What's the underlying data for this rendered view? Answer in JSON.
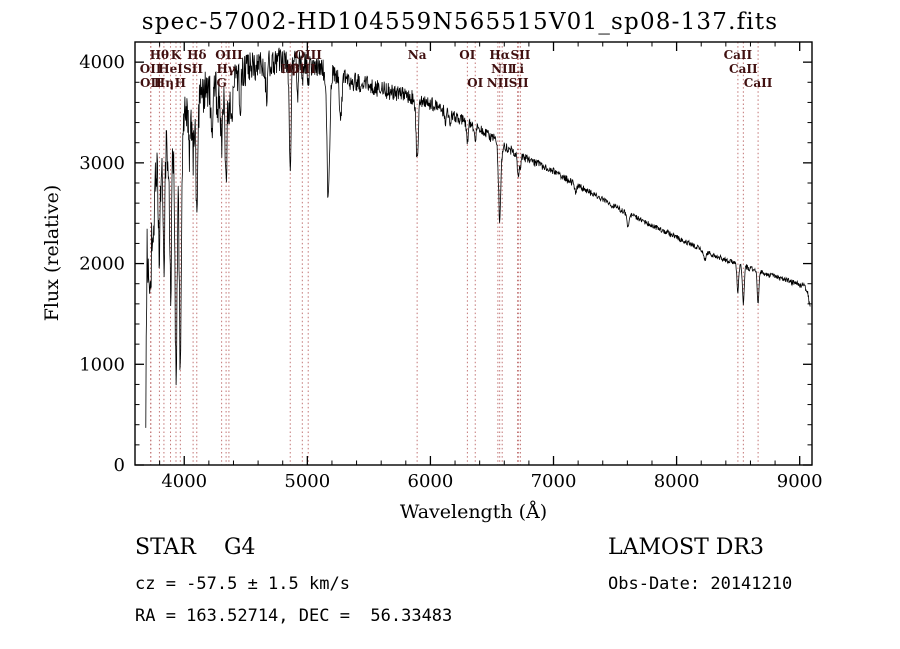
{
  "chart_data": {
    "type": "line",
    "title": "spec-57002-HD104559N565515V01_sp08-137.fits",
    "xlabel": "Wavelength (Å)",
    "ylabel": "Flux (relative)",
    "xlim": [
      3600,
      9100
    ],
    "ylim": [
      0,
      4200
    ],
    "xticks": [
      4000,
      5000,
      6000,
      7000,
      8000,
      9000
    ],
    "yticks": [
      0,
      1000,
      2000,
      3000,
      4000
    ],
    "x_minor_step": 200,
    "y_minor_step": 200,
    "grid": false,
    "legend": "none",
    "series_color": "#000000",
    "marked_line_color": "#bb6666",
    "marked_label_color": "#401010",
    "marked_lines": [
      {
        "label": "Hθ",
        "wavelength": 3798,
        "row": 1
      },
      {
        "label": "K",
        "wavelength": 3933,
        "row": 1
      },
      {
        "label": "Hδ",
        "wavelength": 4102,
        "row": 1
      },
      {
        "label": "OIII",
        "wavelength": 4363,
        "row": 1
      },
      {
        "label": "OIII",
        "wavelength": 5007,
        "row": 1
      },
      {
        "label": "Na",
        "wavelength": 5892,
        "row": 1
      },
      {
        "label": "OI",
        "wavelength": 6300,
        "row": 1
      },
      {
        "label": "Hα",
        "wavelength": 6563,
        "row": 1
      },
      {
        "label": "SII",
        "wavelength": 6731,
        "row": 1
      },
      {
        "label": "CaII",
        "wavelength": 8498,
        "row": 1
      },
      {
        "label": "OII",
        "wavelength": 3727,
        "row": 2
      },
      {
        "label": "HeI",
        "wavelength": 3889,
        "row": 2
      },
      {
        "label": "SII",
        "wavelength": 4072,
        "row": 2
      },
      {
        "label": "Hγ",
        "wavelength": 4340,
        "row": 2
      },
      {
        "label": "Hβ",
        "wavelength": 4861,
        "row": 2
      },
      {
        "label": "OIII",
        "wavelength": 4959,
        "row": 2
      },
      {
        "label": "NII",
        "wavelength": 6583,
        "row": 2
      },
      {
        "label": "Li",
        "wavelength": 6708,
        "row": 2
      },
      {
        "label": "CaII",
        "wavelength": 8542,
        "row": 2
      },
      {
        "label": "OII",
        "wavelength": 3729,
        "row": 3
      },
      {
        "label": "Hη",
        "wavelength": 3835,
        "row": 3
      },
      {
        "label": "H",
        "wavelength": 3968,
        "row": 3
      },
      {
        "label": "G",
        "wavelength": 4304,
        "row": 3
      },
      {
        "label": "OI",
        "wavelength": 6364,
        "row": 3
      },
      {
        "label": "NII",
        "wavelength": 6548,
        "row": 3
      },
      {
        "label": "SII",
        "wavelength": 6717,
        "row": 3
      },
      {
        "label": "CaII",
        "wavelength": 8662,
        "row": 3
      }
    ],
    "spectrum": {
      "seed": 20141210,
      "samples": 1600,
      "range": [
        3688,
        9085
      ],
      "continuum": [
        [
          3688,
          400
        ],
        [
          3692,
          1600
        ],
        [
          3700,
          2500
        ],
        [
          3730,
          2850
        ],
        [
          3770,
          2950
        ],
        [
          3820,
          3050
        ],
        [
          3870,
          3150
        ],
        [
          3920,
          3250
        ],
        [
          3970,
          3350
        ],
        [
          4020,
          3500
        ],
        [
          4080,
          3600
        ],
        [
          4150,
          3700
        ],
        [
          4250,
          3760
        ],
        [
          4350,
          3820
        ],
        [
          4450,
          3900
        ],
        [
          4550,
          3950
        ],
        [
          4650,
          3990
        ],
        [
          4750,
          4010
        ],
        [
          4850,
          4030
        ],
        [
          4950,
          4010
        ],
        [
          5050,
          3960
        ],
        [
          5150,
          3910
        ],
        [
          5250,
          3860
        ],
        [
          5350,
          3810
        ],
        [
          5450,
          3780
        ],
        [
          5550,
          3750
        ],
        [
          5650,
          3710
        ],
        [
          5750,
          3680
        ],
        [
          5850,
          3650
        ],
        [
          5950,
          3610
        ],
        [
          6050,
          3560
        ],
        [
          6150,
          3490
        ],
        [
          6250,
          3430
        ],
        [
          6350,
          3360
        ],
        [
          6450,
          3290
        ],
        [
          6550,
          3210
        ],
        [
          6650,
          3130
        ],
        [
          6750,
          3060
        ],
        [
          6850,
          3000
        ],
        [
          6950,
          2950
        ],
        [
          7050,
          2880
        ],
        [
          7150,
          2810
        ],
        [
          7250,
          2740
        ],
        [
          7350,
          2670
        ],
        [
          7450,
          2600
        ],
        [
          7550,
          2530
        ],
        [
          7650,
          2470
        ],
        [
          7750,
          2410
        ],
        [
          7850,
          2350
        ],
        [
          7950,
          2290
        ],
        [
          8050,
          2230
        ],
        [
          8150,
          2170
        ],
        [
          8250,
          2110
        ],
        [
          8350,
          2060
        ],
        [
          8450,
          2010
        ],
        [
          8550,
          1970
        ],
        [
          8650,
          1930
        ],
        [
          8750,
          1890
        ],
        [
          8850,
          1850
        ],
        [
          8950,
          1810
        ],
        [
          9030,
          1780
        ],
        [
          9065,
          1720
        ],
        [
          9085,
          1550
        ]
      ],
      "noise": [
        [
          3688,
          280
        ],
        [
          3900,
          260
        ],
        [
          4200,
          210
        ],
        [
          4600,
          150
        ],
        [
          5000,
          115
        ],
        [
          5400,
          95
        ],
        [
          5800,
          80
        ],
        [
          6200,
          60
        ],
        [
          6600,
          50
        ],
        [
          7000,
          35
        ],
        [
          7600,
          28
        ],
        [
          8200,
          26
        ],
        [
          8800,
          26
        ],
        [
          9085,
          30
        ]
      ],
      "dips": [
        [
          3710,
          600,
          8
        ],
        [
          3727,
          900,
          7
        ],
        [
          3750,
          700,
          9
        ],
        [
          3798,
          950,
          7
        ],
        [
          3835,
          1150,
          7
        ],
        [
          3889,
          1450,
          8
        ],
        [
          3933,
          2300,
          9
        ],
        [
          3968,
          2300,
          9
        ],
        [
          4045,
          450,
          7
        ],
        [
          4072,
          520,
          7
        ],
        [
          4102,
          1050,
          8
        ],
        [
          4226,
          550,
          8
        ],
        [
          4271,
          350,
          7
        ],
        [
          4304,
          620,
          10
        ],
        [
          4340,
          950,
          8
        ],
        [
          4363,
          320,
          6
        ],
        [
          4383,
          480,
          8
        ],
        [
          4455,
          300,
          7
        ],
        [
          4668,
          320,
          8
        ],
        [
          4861,
          1020,
          8
        ],
        [
          4920,
          330,
          7
        ],
        [
          4959,
          210,
          6
        ],
        [
          5007,
          210,
          6
        ],
        [
          5170,
          1260,
          11
        ],
        [
          5270,
          460,
          9
        ],
        [
          5892,
          620,
          9
        ],
        [
          6122,
          160,
          6
        ],
        [
          6162,
          140,
          6
        ],
        [
          6300,
          190,
          6
        ],
        [
          6364,
          130,
          6
        ],
        [
          6548,
          110,
          5
        ],
        [
          6563,
          790,
          8
        ],
        [
          6583,
          110,
          5
        ],
        [
          6708,
          130,
          5
        ],
        [
          6717,
          160,
          5
        ],
        [
          6731,
          160,
          5
        ],
        [
          7180,
          90,
          8
        ],
        [
          7605,
          130,
          10
        ],
        [
          8230,
          90,
          8
        ],
        [
          8498,
          270,
          7
        ],
        [
          8542,
          370,
          7
        ],
        [
          8662,
          310,
          7
        ]
      ]
    }
  },
  "annotations": {
    "class_label": "STAR    G4",
    "survey": "LAMOST DR3",
    "cz": "cz = -57.5 ± 1.5 km/s",
    "obs_date": "Obs-Date: 20141210",
    "radec": "RA = 163.52714, DEC =  56.33483"
  }
}
